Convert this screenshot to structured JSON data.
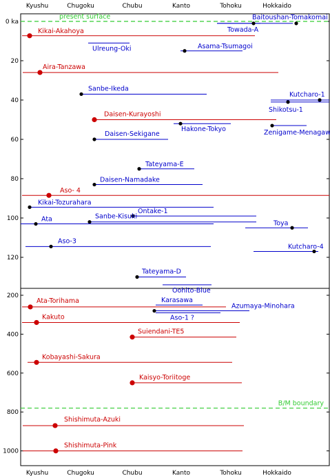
{
  "chart_data": {
    "type": "timeline",
    "regions": [
      "Kyushu",
      "Chugoku",
      "Chubu",
      "Kanto",
      "Tohoku",
      "Hokkaido"
    ],
    "boundaries": [
      {
        "label": "present surface",
        "age": 0
      },
      {
        "label": "B/M boundary",
        "age": 780
      }
    ],
    "upper_panel": {
      "y_range": [
        0,
        135
      ],
      "y_ticks": [
        0,
        20,
        40,
        60,
        80,
        100,
        120
      ],
      "y_tick_labels": [
        "0 ka",
        "20",
        "40",
        "60",
        "80",
        "100",
        "120"
      ]
    },
    "lower_panel": {
      "y_range": [
        200,
        1000
      ],
      "y_ticks": [
        200,
        400,
        600,
        800,
        1000
      ],
      "y_tick_labels": [
        "200",
        "400",
        "600",
        "800",
        "1000"
      ]
    },
    "tephras": [
      {
        "name": "Baitoushan-Tomakomai",
        "age": 1,
        "color": "#0000cc",
        "source": 430,
        "x_range": [
          315,
          425
        ],
        "marker": "dot"
      },
      {
        "name": "Towada-A",
        "age": 1,
        "color": "#0000cc",
        "source": 368,
        "x_range": [
          315,
          378
        ],
        "marker": "dot"
      },
      {
        "name": "Kikai-Akahoya",
        "age": 7.3,
        "color": "#cc0000",
        "source": 43,
        "x_range": [
          32,
          370
        ],
        "marker": "big"
      },
      {
        "name": "Ulreung-Oki",
        "age": 11,
        "color": "#0000cc",
        "source": 128,
        "x_range": [
          128,
          188
        ],
        "marker": "none"
      },
      {
        "name": "Asama-Tsumagoi",
        "age": 15,
        "color": "#0000cc",
        "source": 268,
        "x_range": [
          262,
          352
        ],
        "marker": "dot"
      },
      {
        "name": "Aira-Tanzawa",
        "age": 26,
        "color": "#cc0000",
        "source": 58,
        "x_range": [
          33,
          404
        ],
        "marker": "big"
      },
      {
        "name": "Sanbe-Ikeda",
        "age": 37,
        "color": "#0000cc",
        "source": 118,
        "x_range": [
          118,
          300
        ],
        "marker": "dot"
      },
      {
        "name": "Kutcharo-1",
        "age": 40,
        "color": "#0000cc",
        "source": 464,
        "x_range": [
          393,
          478
        ],
        "marker": "dot"
      },
      {
        "name": "Shikotsu-1",
        "age": 41,
        "color": "#0000cc",
        "source": 418,
        "x_range": [
          393,
          478
        ],
        "marker": "dot"
      },
      {
        "name": "Daisen-Kurayoshi",
        "age": 50,
        "color": "#cc0000",
        "source": 137,
        "x_range": [
          137,
          401
        ],
        "marker": "big"
      },
      {
        "name": "Hakone-Tokyo",
        "age": 52,
        "color": "#0000cc",
        "source": 262,
        "x_range": [
          252,
          335
        ],
        "marker": "dot"
      },
      {
        "name": "Zenigame-Menagawa",
        "age": 53,
        "color": "#0000cc",
        "source": 395,
        "x_range": [
          395,
          445
        ],
        "marker": "dot"
      },
      {
        "name": "Daisen-Sekigane",
        "age": 60,
        "color": "#0000cc",
        "source": 137,
        "x_range": [
          137,
          244
        ],
        "marker": "dot"
      },
      {
        "name": "Tateyama-E",
        "age": 75,
        "color": "#0000cc",
        "source": 202,
        "x_range": [
          202,
          282
        ],
        "marker": "dot"
      },
      {
        "name": "Daisen-Namadake",
        "age": 83,
        "color": "#0000cc",
        "source": 137,
        "x_range": [
          137,
          294
        ],
        "marker": "dot"
      },
      {
        "name": "Aso-4",
        "display": "Aso- 4",
        "age": 88.5,
        "color": "#cc0000",
        "source": 71,
        "x_range": [
          32,
          478
        ],
        "marker": "big"
      },
      {
        "name": "Kikai-Tozurahara",
        "age": 94.5,
        "color": "#0000cc",
        "source": 43,
        "x_range": [
          43,
          310
        ],
        "marker": "dot"
      },
      {
        "name": "Ontake-1",
        "age": 99,
        "color": "#0000cc",
        "source": 193,
        "x_range": [
          193,
          372
        ],
        "marker": "dot"
      },
      {
        "name": "Sanbe-Kisuki",
        "age": 102,
        "color": "#0000cc",
        "source": 130,
        "x_range": [
          130,
          372
        ],
        "marker": "dot"
      },
      {
        "name": "Ata",
        "age": 103,
        "color": "#0000cc",
        "source": 52,
        "x_range": [
          30,
          310
        ],
        "marker": "dot"
      },
      {
        "name": "Toya",
        "age": 105,
        "color": "#0000cc",
        "source": 424,
        "x_range": [
          356,
          447
        ],
        "marker": "dot"
      },
      {
        "name": "Aso-3",
        "age": 114.5,
        "color": "#0000cc",
        "source": 74,
        "x_range": [
          37,
          306
        ],
        "marker": "dot"
      },
      {
        "name": "Kutcharo-4",
        "age": 117,
        "color": "#0000cc",
        "source": 456,
        "x_range": [
          368,
          462
        ],
        "marker": "dot"
      },
      {
        "name": "Tateyama-D",
        "age": 130,
        "color": "#0000cc",
        "source": 199,
        "x_range": [
          199,
          270
        ],
        "marker": "dot"
      },
      {
        "name": "Oohito-Blue",
        "age": 134,
        "color": "#0000cc",
        "source": null,
        "x_range": [
          236,
          307
        ],
        "marker": "none"
      },
      {
        "name": "Karasawa",
        "age": 250,
        "color": "#0000cc",
        "source": null,
        "x_range": [
          226,
          294
        ],
        "marker": "none"
      },
      {
        "name": "Ata-Torihama",
        "age": 260,
        "color": "#cc0000",
        "source": 44,
        "x_range": [
          32,
          328
        ],
        "marker": "big"
      },
      {
        "name": "Azumaya-Minohara",
        "age": 280,
        "color": "#0000cc",
        "source": 224,
        "x_range": [
          224,
          362
        ],
        "marker": "dot"
      },
      {
        "name": "Aso-1 ?",
        "display": "Aso-1 ?",
        "age": 290,
        "color": "#0000cc",
        "source": null,
        "x_range": [
          226,
          320
        ],
        "marker": "none"
      },
      {
        "name": "Kakuto",
        "age": 340,
        "color": "#cc0000",
        "source": 53,
        "x_range": [
          32,
          348
        ],
        "marker": "big"
      },
      {
        "name": "Suiendani-TE5",
        "age": 415,
        "color": "#cc0000",
        "source": 192,
        "x_range": [
          192,
          343
        ],
        "marker": "big"
      },
      {
        "name": "Kobayashi-Sakura",
        "age": 545,
        "color": "#cc0000",
        "source": 53,
        "x_range": [
          40,
          337
        ],
        "marker": "big"
      },
      {
        "name": "Kaisyo-Toriitoge",
        "age": 650,
        "color": "#cc0000",
        "source": 192,
        "x_range": [
          192,
          351
        ],
        "marker": "big"
      },
      {
        "name": "Shishimuta-Azuki",
        "age": 870,
        "color": "#cc0000",
        "source": 80,
        "x_range": [
          33,
          354
        ],
        "marker": "big"
      },
      {
        "name": "Shishimuta-Pink",
        "age": 1000,
        "color": "#cc0000",
        "source": 81,
        "x_range": [
          33,
          352
        ],
        "marker": "big"
      }
    ],
    "colors": {
      "boundary": "#33cc33",
      "axis": "#000000"
    }
  }
}
